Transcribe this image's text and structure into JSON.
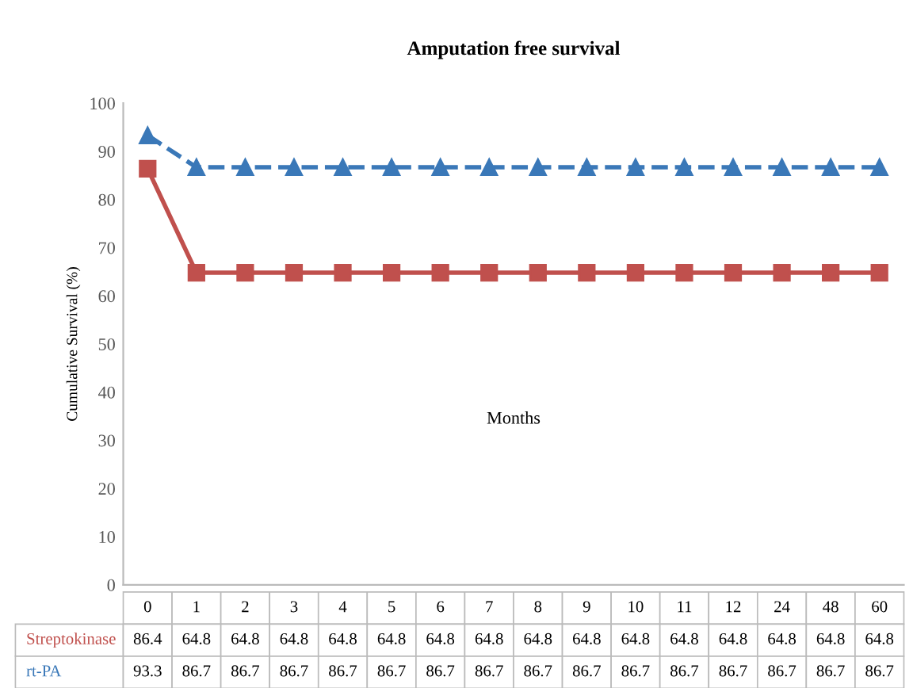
{
  "chart_data": {
    "type": "line",
    "title": "Amputation free survival",
    "xlabel": "Months",
    "ylabel": "Cumulative Survival (%)",
    "categories": [
      "0",
      "1",
      "2",
      "3",
      "4",
      "5",
      "6",
      "7",
      "8",
      "9",
      "10",
      "11",
      "12",
      "24",
      "48",
      "60"
    ],
    "series": [
      {
        "name": "Streptokinase",
        "color": "#c0504d",
        "marker": "square",
        "line_style": "solid",
        "values": [
          86.4,
          64.8,
          64.8,
          64.8,
          64.8,
          64.8,
          64.8,
          64.8,
          64.8,
          64.8,
          64.8,
          64.8,
          64.8,
          64.8,
          64.8,
          64.8
        ]
      },
      {
        "name": "rt-PA",
        "color": "#3a78b8",
        "marker": "triangle",
        "line_style": "dashed",
        "values": [
          93.3,
          86.7,
          86.7,
          86.7,
          86.7,
          86.7,
          86.7,
          86.7,
          86.7,
          86.7,
          86.7,
          86.7,
          86.7,
          86.7,
          86.7,
          86.7
        ]
      }
    ],
    "ylim": [
      0,
      100
    ],
    "yticks": [
      0,
      10,
      20,
      30,
      40,
      50,
      60,
      70,
      80,
      90,
      100
    ],
    "grid": false,
    "legend": false,
    "data_labels": true
  }
}
